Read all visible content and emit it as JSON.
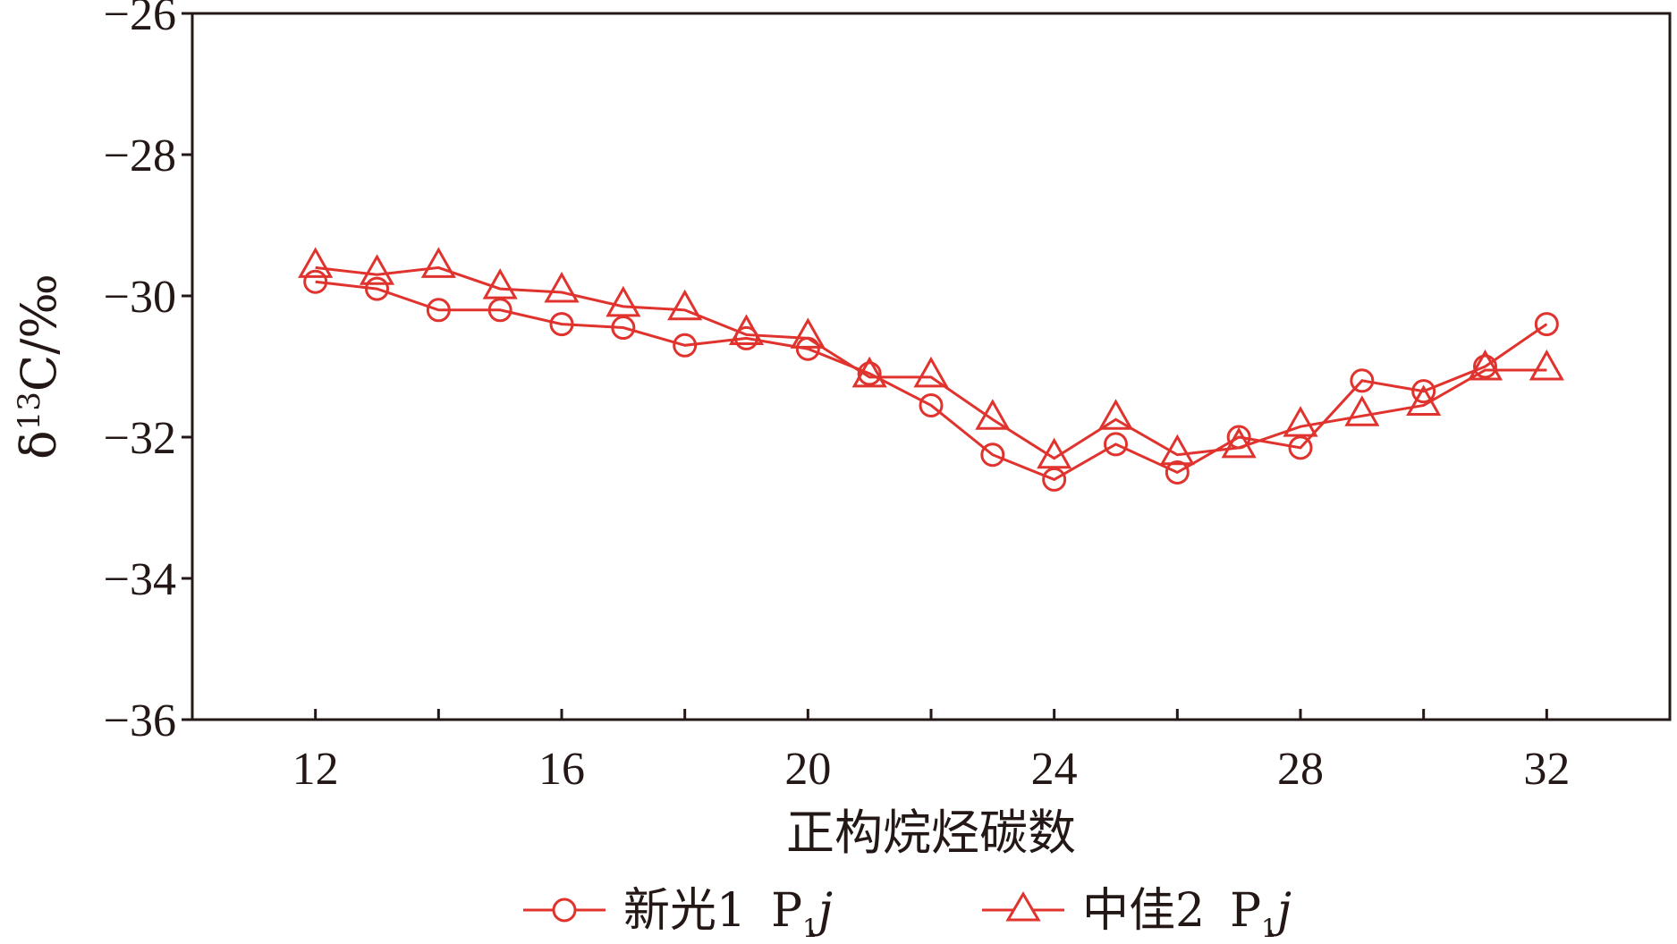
{
  "chart_data": {
    "type": "line",
    "title": "",
    "xlabel": "正构烷烃碳数",
    "ylabel": "δ13C/‰",
    "ylabel_parts": {
      "delta": "δ",
      "superscript": "13",
      "rest": "C/‰"
    },
    "xlim": [
      10,
      34
    ],
    "ylim": [
      -36,
      -26
    ],
    "x_ticks": [
      12,
      16,
      20,
      24,
      28,
      32
    ],
    "y_ticks": [
      -36,
      -34,
      -32,
      -30,
      -28,
      -26
    ],
    "x_tick_labels": [
      "12",
      "16",
      "20",
      "24",
      "28",
      "32"
    ],
    "y_tick_labels": [
      "−36",
      "−34",
      "−32",
      "−30",
      "−28",
      "−26"
    ],
    "grid": false,
    "legend_position": "bottom",
    "x": [
      12,
      13,
      14,
      15,
      16,
      17,
      18,
      19,
      20,
      21,
      22,
      23,
      24,
      25,
      26,
      27,
      28,
      29,
      30,
      31,
      32
    ],
    "series": [
      {
        "name": "新光1 P1j",
        "name_parts": {
          "well": "新光1",
          "P": "P",
          "sub": "1",
          "j": "j"
        },
        "marker": "circle",
        "color": "#e0332e",
        "values": [
          -29.8,
          -29.9,
          -30.2,
          -30.2,
          -30.4,
          -30.45,
          -30.7,
          -30.6,
          -30.75,
          -31.1,
          -31.55,
          -32.25,
          -32.6,
          -32.1,
          -32.5,
          -32.0,
          -32.15,
          -31.2,
          -31.35,
          -31.0,
          -30.4
        ]
      },
      {
        "name": "中佳2 P1j",
        "name_parts": {
          "well": "中佳2",
          "P": "P",
          "sub": "1",
          "j": "j"
        },
        "marker": "triangle",
        "color": "#e0332e",
        "values": [
          -29.6,
          -29.7,
          -29.6,
          -29.9,
          -29.95,
          -30.15,
          -30.2,
          -30.55,
          -30.6,
          -31.15,
          -31.15,
          -31.75,
          -32.3,
          -31.75,
          -32.25,
          -32.15,
          -31.85,
          -31.7,
          -31.55,
          -31.05,
          -31.05
        ]
      }
    ]
  }
}
